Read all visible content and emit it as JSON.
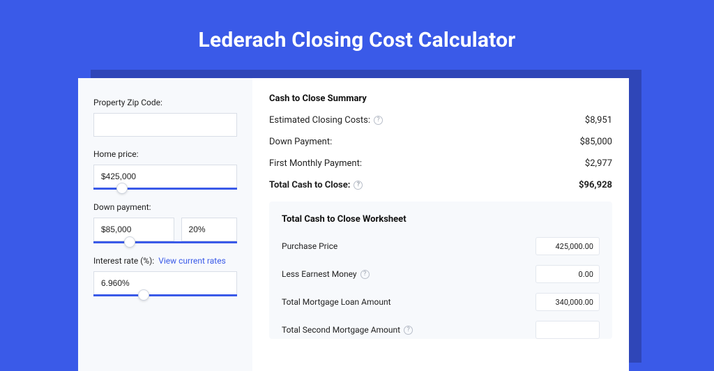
{
  "colors": {
    "page_bg": "#3a5ae8",
    "shadow_plate": "#2f46b8",
    "card_bg": "#ffffff",
    "left_bg": "#f7f9fc",
    "panel_bg": "#f7f9fc",
    "input_border": "#d9dee7",
    "slider_track": "#3a5ae8",
    "text": "#222222",
    "link": "#3a5ae8",
    "help_border": "#b8bec9"
  },
  "hero_title": "Lederach Closing Cost Calculator",
  "left": {
    "zip": {
      "label": "Property Zip Code:",
      "value": ""
    },
    "home_price": {
      "label": "Home price:",
      "value": "$425,000",
      "slider_pct": 20
    },
    "down_payment": {
      "label": "Down payment:",
      "value": "$85,000",
      "pct": "20%",
      "slider_pct": 25
    },
    "interest": {
      "label": "Interest rate (%):",
      "link_text": "View current rates",
      "value": "6.960%",
      "slider_pct": 35
    }
  },
  "summary": {
    "title": "Cash to Close Summary",
    "rows": [
      {
        "label": "Estimated Closing Costs:",
        "help": true,
        "value": "$8,951",
        "bold": false
      },
      {
        "label": "Down Payment:",
        "help": false,
        "value": "$85,000",
        "bold": false
      },
      {
        "label": "First Monthly Payment:",
        "help": false,
        "value": "$2,977",
        "bold": false
      },
      {
        "label": "Total Cash to Close:",
        "help": true,
        "value": "$96,928",
        "bold": true
      }
    ]
  },
  "worksheet": {
    "title": "Total Cash to Close Worksheet",
    "rows": [
      {
        "label": "Purchase Price",
        "help": false,
        "value": "425,000.00"
      },
      {
        "label": "Less Earnest Money",
        "help": true,
        "value": "0.00"
      },
      {
        "label": "Total Mortgage Loan Amount",
        "help": false,
        "value": "340,000.00"
      },
      {
        "label": "Total Second Mortgage Amount",
        "help": true,
        "value": ""
      }
    ]
  }
}
